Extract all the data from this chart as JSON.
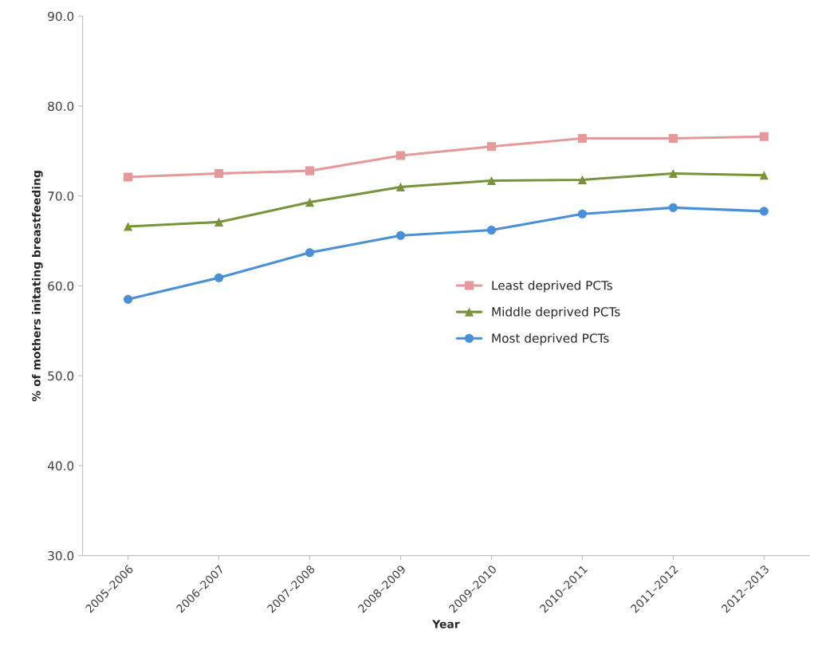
{
  "chart_data": {
    "type": "line",
    "xlabel": "Year",
    "ylabel": "% of mothers initating breastfeeding",
    "categories": [
      "2005–2006",
      "2006–2007",
      "2007–2008",
      "2008–2009",
      "2009–2010",
      "2010–2011",
      "2011–2012",
      "2012–2013"
    ],
    "series": [
      {
        "name": "Least deprived PCTs",
        "color": "#e6999a",
        "marker": "square",
        "values": [
          72.1,
          72.5,
          72.8,
          74.5,
          75.5,
          76.4,
          76.4,
          76.6
        ]
      },
      {
        "name": "Middle deprived PCTs",
        "color": "#77933c",
        "marker": "triangle",
        "values": [
          66.6,
          67.1,
          69.3,
          71.0,
          71.7,
          71.8,
          72.5,
          72.3
        ]
      },
      {
        "name": "Most deprived PCTs",
        "color": "#4a90d9",
        "marker": "circle",
        "values": [
          58.5,
          60.9,
          63.7,
          65.6,
          66.2,
          68.0,
          68.7,
          68.3
        ]
      }
    ],
    "ylim": [
      30,
      90
    ],
    "yticks": [
      {
        "value": 30,
        "label": "30.0"
      },
      {
        "value": 40,
        "label": "40.0"
      },
      {
        "value": 50,
        "label": "50.0"
      },
      {
        "value": 60,
        "label": "60.0"
      },
      {
        "value": 70,
        "label": "70.0"
      },
      {
        "value": 80,
        "label": "80.0"
      },
      {
        "value": 90,
        "label": "90.0"
      }
    ],
    "grid": false,
    "legend": "right",
    "line_style": "solid"
  }
}
